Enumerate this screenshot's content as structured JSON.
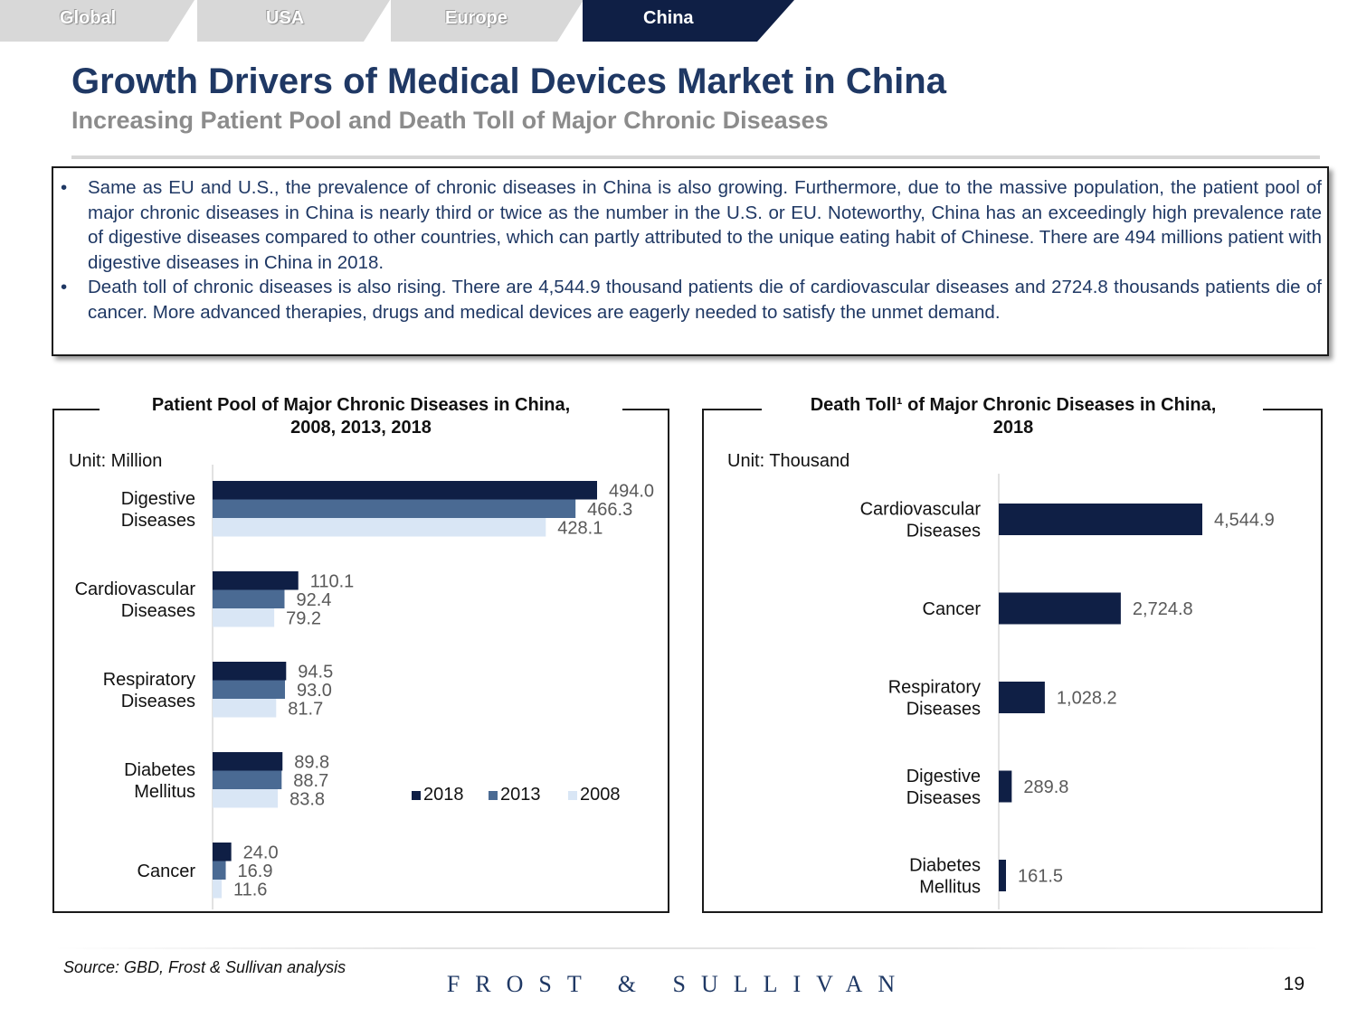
{
  "tabs": [
    {
      "label": "Global",
      "active": false
    },
    {
      "label": "USA",
      "active": false
    },
    {
      "label": "Europe",
      "active": false
    },
    {
      "label": "China",
      "active": true
    }
  ],
  "colors": {
    "navy": "#0f1f45",
    "steel": "#4a6a93",
    "light": "#d9e6f5",
    "title": "#1f3864",
    "tab_inactive": "#d8d8d8",
    "tab_active": "#0f1f45"
  },
  "header": {
    "title": "Growth Drivers of Medical Devices Market in China",
    "subtitle": "Increasing Patient Pool and Death Toll of Major Chronic Diseases"
  },
  "summary": {
    "bullets": [
      "Same as EU and U.S., the prevalence of chronic diseases in China is also growing. Furthermore, due to the massive population, the patient pool of major chronic diseases in China is nearly third or twice as the number in the U.S. or EU. Noteworthy, China has an exceedingly high prevalence rate of digestive diseases compared to other countries, which can partly attributed to the unique eating habit of Chinese. There are 494 millions patient  with digestive diseases in China in 2018.",
      "Death toll of chronic diseases is also rising. There are 4,544.9 thousand patients die of cardiovascular diseases and 2724.8 thousands  patients die of cancer. More advanced therapies, drugs and medical devices are eagerly needed to satisfy the unmet demand."
    ]
  },
  "chart_data": [
    {
      "type": "bar",
      "orientation": "horizontal",
      "title_line1": "Patient Pool of Major Chronic Diseases in China,",
      "title_line2": "2008, 2013, 2018",
      "unit": "Unit: Million",
      "categories": [
        [
          "Digestive",
          "Diseases"
        ],
        [
          "Cardiovascular",
          "Diseases"
        ],
        [
          "Respiratory",
          "Diseases"
        ],
        [
          "Diabetes",
          "Mellitus"
        ],
        [
          "Cancer"
        ]
      ],
      "series": [
        {
          "name": "2018",
          "color": "#0f1f45",
          "values": [
            494.0,
            110.1,
            94.5,
            89.8,
            24.0
          ],
          "labels": [
            "494.0",
            "110.1",
            "94.5",
            "89.8",
            "24.0"
          ]
        },
        {
          "name": "2013",
          "color": "#4a6a93",
          "values": [
            466.3,
            92.4,
            93.0,
            88.7,
            16.9
          ],
          "labels": [
            "466.3",
            "92.4",
            "93.0",
            "88.7",
            "16.9"
          ]
        },
        {
          "name": "2008",
          "color": "#d9e6f5",
          "values": [
            428.1,
            79.2,
            81.7,
            83.8,
            11.6
          ],
          "labels": [
            "428.1",
            "79.2",
            "81.7",
            "83.8",
            "11.6"
          ]
        }
      ],
      "xlim": [
        0,
        494.0
      ],
      "legend": "bottom-right"
    },
    {
      "type": "bar",
      "orientation": "horizontal",
      "title_line1": "Death Toll¹ of Major Chronic Diseases in China,",
      "title_line2": "2018",
      "unit": "Unit: Thousand",
      "categories": [
        [
          "Cardiovascular",
          "Diseases"
        ],
        [
          "Cancer"
        ],
        [
          "Respiratory",
          "Diseases"
        ],
        [
          "Digestive",
          "Diseases"
        ],
        [
          "Diabetes",
          "Mellitus"
        ]
      ],
      "series": [
        {
          "name": "2018",
          "color": "#0f1f45",
          "values": [
            4544.9,
            2724.8,
            1028.2,
            289.8,
            161.5
          ],
          "labels": [
            "4,544.9",
            "2,724.8",
            "1,028.2",
            "289.8",
            "161.5"
          ]
        }
      ],
      "xlim": [
        0,
        4544.9
      ]
    }
  ],
  "footer": {
    "source": "Source: GBD, Frost & Sullivan analysis",
    "brand": "FROST & SULLIVAN",
    "page": "19"
  }
}
